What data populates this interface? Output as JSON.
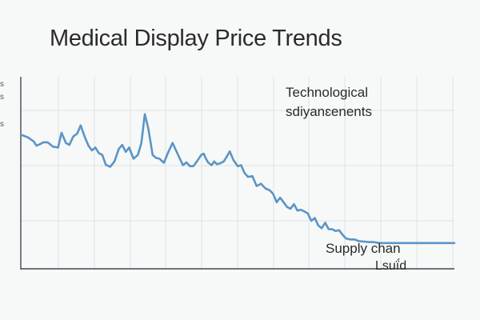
{
  "title": "Medical Display Price Trends",
  "chart_data": {
    "type": "line",
    "title": "Medical Display Price Trends",
    "xlabel": "",
    "ylabel": "",
    "grid": true,
    "xlim": [
      0,
      1
    ],
    "ylim": [
      0,
      1
    ],
    "series": [
      {
        "color": "#5a95c6",
        "x": [
          0.0,
          0.016,
          0.03,
          0.036,
          0.044,
          0.052,
          0.062,
          0.074,
          0.086,
          0.094,
          0.104,
          0.112,
          0.121,
          0.13,
          0.138,
          0.147,
          0.156,
          0.164,
          0.172,
          0.18,
          0.188,
          0.196,
          0.206,
          0.216,
          0.226,
          0.234,
          0.242,
          0.25,
          0.26,
          0.27,
          0.278,
          0.286,
          0.294,
          0.304,
          0.312,
          0.32,
          0.33,
          0.34,
          0.35,
          0.358,
          0.366,
          0.374,
          0.382,
          0.39,
          0.398,
          0.406,
          0.416,
          0.422,
          0.426,
          0.432,
          0.44,
          0.446,
          0.452,
          0.46,
          0.468,
          0.476,
          0.482,
          0.49,
          0.5,
          0.508,
          0.516,
          0.524,
          0.534,
          0.544,
          0.554,
          0.564,
          0.574,
          0.582,
          0.59,
          0.598,
          0.606,
          0.614,
          0.622,
          0.63,
          0.638,
          0.646,
          0.654,
          0.662,
          0.67,
          0.678,
          0.686,
          0.694,
          0.702,
          0.71,
          0.718,
          0.726,
          0.734,
          0.742,
          0.75,
          0.76,
          0.77,
          0.78,
          0.792,
          0.802,
          0.812,
          0.82,
          0.828,
          0.838,
          0.848,
          0.858,
          0.868,
          0.878,
          0.886,
          0.896,
          0.906,
          0.918,
          0.93,
          0.94,
          0.95,
          0.96,
          0.97,
          0.98,
          0.99,
          1.0
        ],
        "y": [
          0.694,
          0.677,
          0.65,
          0.624,
          0.633,
          0.645,
          0.645,
          0.618,
          0.612,
          0.706,
          0.641,
          0.629,
          0.682,
          0.7,
          0.753,
          0.682,
          0.624,
          0.594,
          0.612,
          0.576,
          0.565,
          0.503,
          0.49,
          0.524,
          0.603,
          0.629,
          0.585,
          0.612,
          0.541,
          0.565,
          0.641,
          0.824,
          0.735,
          0.565,
          0.546,
          0.541,
          0.515,
          0.582,
          0.641,
          0.594,
          0.546,
          0.5,
          0.518,
          0.494,
          0.494,
          0.524,
          0.565,
          0.573,
          0.546,
          0.518,
          0.5,
          0.524,
          0.506,
          0.512,
          0.524,
          0.559,
          0.588,
          0.535,
          0.494,
          0.5,
          0.451,
          0.426,
          0.431,
          0.368,
          0.382,
          0.353,
          0.341,
          0.318,
          0.265,
          0.294,
          0.265,
          0.235,
          0.224,
          0.253,
          0.212,
          0.218,
          0.206,
          0.194,
          0.147,
          0.165,
          0.118,
          0.1,
          0.135,
          0.094,
          0.094,
          0.082,
          0.088,
          0.059,
          0.035,
          0.029,
          0.029,
          0.018,
          0.015,
          0.012,
          0.012,
          0.009,
          0.006,
          0.006,
          0.006,
          0.006,
          0.006,
          0.006,
          0.006,
          0.006,
          0.006,
          0.006,
          0.006,
          0.006,
          0.006,
          0.006,
          0.006,
          0.006,
          0.006,
          0.006
        ]
      }
    ],
    "annotations": [
      {
        "lines": [
          "Technological",
          "sdiyanɛenents"
        ]
      },
      {
        "lines": [
          "Supply chan",
          "Lsuḯd"
        ]
      }
    ],
    "ytick_labels": [
      "s",
      "s",
      "s"
    ]
  },
  "annotation_1_line_1": "Technological",
  "annotation_1_line_2": "sdiyanɛenents",
  "annotation_2_line_1": "Supply chan",
  "annotation_2_line_2": "Lsuḯd",
  "ytick_1": "s",
  "ytick_2": "s",
  "ytick_3": "s",
  "colors": {
    "line": "#5a95c6",
    "grid": "#e3e6e8",
    "axis": "#3d4a55",
    "background": "#f7f8f8"
  }
}
